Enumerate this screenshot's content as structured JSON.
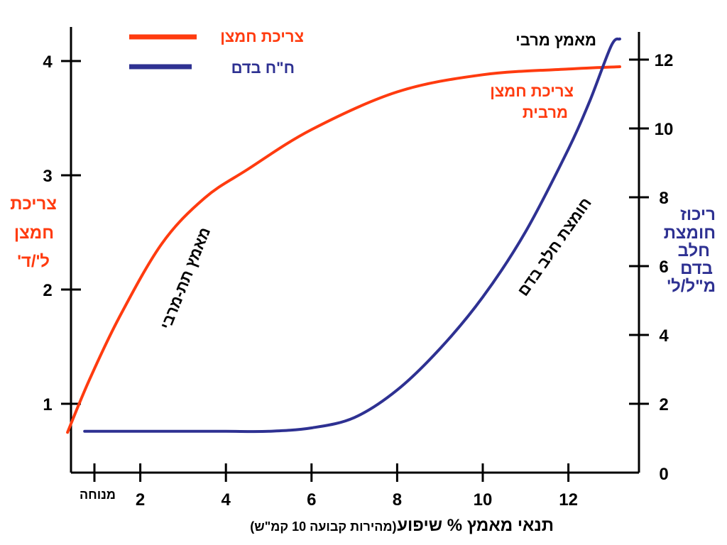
{
  "chart_data": {
    "type": "line",
    "title": "",
    "x_axis": {
      "label": "תנאי מאמץ % שיפוע",
      "label_note": "(מהירות קבועה 10 קמ\"ש)",
      "range": [
        0,
        13.5
      ],
      "ticks": [
        2,
        4,
        6,
        8,
        10,
        12
      ],
      "tick_labels": [
        "2",
        "4",
        "6",
        "8",
        "10",
        "12"
      ],
      "rest_label": "מנוחה"
    },
    "y_left": {
      "label_lines": [
        "צריכת",
        "חמצן",
        "ל'/ד'"
      ],
      "range": [
        0.5,
        4.3
      ],
      "ticks": [
        1,
        2,
        3,
        4
      ],
      "tick_labels": [
        "1",
        "2",
        "3",
        "4"
      ],
      "color": "#ff3b0f"
    },
    "y_right": {
      "label_lines": [
        "ריכוז",
        "חומצת",
        "חלב",
        "בדם",
        "מ\"ל/ל'"
      ],
      "range": [
        0,
        12.6
      ],
      "ticks": [
        0,
        2,
        4,
        6,
        8,
        10,
        12
      ],
      "tick_labels": [
        "0",
        "2",
        "4",
        "6",
        "8",
        "10",
        "12"
      ],
      "color": "#2e3192"
    },
    "series": [
      {
        "name": "צריכת חמצן",
        "axis": "left",
        "color": "#ff3b0f",
        "x": [
          0.3,
          0.8,
          1.5,
          2.5,
          3.5,
          4.5,
          6.0,
          8.0,
          10.0,
          12.0,
          13.2
        ],
        "y": [
          0.75,
          1.2,
          1.75,
          2.4,
          2.8,
          3.05,
          3.4,
          3.73,
          3.88,
          3.93,
          3.95
        ]
      },
      {
        "name": "ח\"ח בדם",
        "axis": "right",
        "color": "#2e3192",
        "x": [
          0.7,
          2.0,
          3.0,
          4.0,
          5.0,
          6.0,
          7.0,
          8.0,
          9.0,
          10.0,
          11.0,
          12.0,
          12.5,
          13.0,
          13.2
        ],
        "y": [
          1.2,
          1.2,
          1.2,
          1.2,
          1.2,
          1.3,
          1.6,
          2.4,
          3.6,
          5.1,
          7.0,
          9.4,
          10.8,
          12.4,
          12.6
        ]
      }
    ],
    "legend": {
      "position": "top-center",
      "items": [
        {
          "label": "צריכת חמצן",
          "color": "#ff3b0f"
        },
        {
          "label": "ח\"ח בדם",
          "color": "#2e3192"
        }
      ]
    },
    "annotations": {
      "max_effort": "מאמץ מרבי",
      "max_o2_lines": [
        "צריכת חמצן",
        "מרבית"
      ],
      "submax": "מאמץ תת-מרבי",
      "lactate": "חומצת חלב בדם"
    },
    "grid": false
  }
}
